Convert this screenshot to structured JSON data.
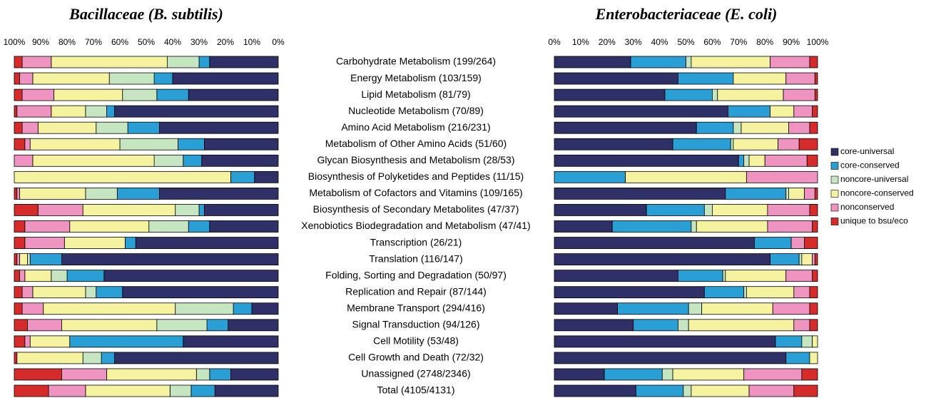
{
  "chart_data": [
    {
      "type": "bar",
      "orientation": "horizontal",
      "stacked": true,
      "title": "Bacillaceae (B. subtilis)",
      "categories": [
        "Carbohydrate Metabolism (199/264)",
        "Energy Metabolism (103/159)",
        "Lipid Metabolism (81/79)",
        "Nucleotide Metabolism (70/89)",
        "Amino Acid Metabolism (216/231)",
        "Metabolism of Other Amino Acids (51/60)",
        "Glycan Biosynthesis and Metabolism (28/53)",
        "Biosynthesis of Polyketides and  Peptides (11/15)",
        "Metabolism of Cofactors and Vitamins (109/165)",
        "Biosynthesis of Secondary Metabolites (47/37)",
        "Xenobiotics Biodegradation and Metabolism (47/41)",
        "Transcription (26/21)",
        "Translation (116/147)",
        "Folding, Sorting and Degradation (50/97)",
        "Replication and Repair (87/144)",
        "Membrane Transport (294/416)",
        "Signal Transduction (94/126)",
        "Cell Motility (53/48)",
        "Cell Growth and Death (72/32)",
        "Unassigned (2748/2346)",
        "Total (4105/4131)"
      ],
      "xlim": [
        100,
        0
      ],
      "xticks": [
        {
          "value": 100,
          "label": "100%"
        },
        {
          "value": 90,
          "label": "90%"
        },
        {
          "value": 80,
          "label": "80%"
        },
        {
          "value": 70,
          "label": "70%"
        },
        {
          "value": 60,
          "label": "60%"
        },
        {
          "value": 50,
          "label": "50%"
        },
        {
          "value": 40,
          "label": "40%"
        },
        {
          "value": 30,
          "label": "30%"
        },
        {
          "value": 20,
          "label": "20%"
        },
        {
          "value": 10,
          "label": "10%"
        },
        {
          "value": 0,
          "label": "0%"
        }
      ],
      "series": [
        {
          "color": "#2e3067",
          "values": [
            26,
            40,
            34,
            62,
            45,
            28,
            29,
            9,
            45,
            28,
            26,
            54,
            82,
            66,
            59,
            10,
            19,
            36,
            62,
            18,
            24
          ]
        },
        {
          "color": "#2a9fd6",
          "values": [
            4,
            7,
            12,
            3,
            12,
            10,
            7,
            9,
            16,
            2,
            8,
            4,
            12,
            14,
            10,
            7,
            8,
            43,
            5,
            8,
            9
          ]
        },
        {
          "color": "#c6e6c2",
          "values": [
            12,
            17,
            13,
            8,
            12,
            22,
            11,
            0,
            12,
            9,
            15,
            0,
            1,
            6,
            4,
            22,
            19,
            0,
            7,
            5,
            8
          ]
        },
        {
          "color": "#f5f2a0",
          "values": [
            44,
            29,
            26,
            13,
            22,
            34,
            46,
            82,
            25,
            35,
            30,
            23,
            3,
            10,
            20,
            50,
            36,
            15,
            25,
            34,
            32
          ]
        },
        {
          "color": "#ef93c0",
          "values": [
            11,
            5,
            12,
            13,
            6,
            2,
            7,
            0,
            1,
            17,
            17,
            15,
            1,
            2,
            4,
            8,
            13,
            2,
            0,
            17,
            14
          ]
        },
        {
          "color": "#d62b2b",
          "values": [
            3,
            2,
            3,
            1,
            3,
            4,
            0,
            0,
            1,
            9,
            4,
            4,
            1,
            2,
            3,
            3,
            5,
            4,
            1,
            18,
            13
          ]
        }
      ]
    },
    {
      "type": "bar",
      "orientation": "horizontal",
      "stacked": true,
      "title": "Enterobacteriaceae (E. coli)",
      "xlim": [
        0,
        100
      ],
      "xticks": [
        {
          "value": 0,
          "label": "0%"
        },
        {
          "value": 10,
          "label": "10%"
        },
        {
          "value": 20,
          "label": "20%"
        },
        {
          "value": 30,
          "label": "30%"
        },
        {
          "value": 40,
          "label": "40%"
        },
        {
          "value": 50,
          "label": "50%"
        },
        {
          "value": 60,
          "label": "60%"
        },
        {
          "value": 70,
          "label": "70%"
        },
        {
          "value": 80,
          "label": "80%"
        },
        {
          "value": 90,
          "label": "90%"
        },
        {
          "value": 100,
          "label": "100%"
        }
      ],
      "legend": "right",
      "series": [
        {
          "name": "core-universal",
          "color": "#2e3067",
          "values": [
            29,
            47,
            42,
            66,
            54,
            45,
            70,
            0,
            65,
            35,
            22,
            76,
            82,
            47,
            57,
            24,
            30,
            84,
            88,
            19,
            31
          ]
        },
        {
          "name": "core-conserved",
          "color": "#2a9fd6",
          "values": [
            21,
            21,
            18,
            16,
            14,
            22,
            2,
            27,
            23,
            22,
            30,
            14,
            11,
            17,
            15,
            27,
            17,
            10,
            9,
            22,
            18
          ]
        },
        {
          "name": "noncore-universal",
          "color": "#c6e6c2",
          "values": [
            2,
            0,
            2,
            0,
            3,
            1,
            2,
            0,
            1,
            3,
            2,
            0,
            1,
            1,
            1,
            5,
            4,
            4,
            0,
            4,
            3
          ]
        },
        {
          "name": "noncore-conserved",
          "color": "#f5f2a0",
          "values": [
            30,
            20,
            25,
            9,
            18,
            17,
            6,
            46,
            6,
            21,
            27,
            0,
            4,
            23,
            18,
            27,
            40,
            2,
            3,
            27,
            22
          ]
        },
        {
          "name": "nonconserved",
          "color": "#ef93c0",
          "values": [
            15,
            11,
            12,
            7,
            8,
            8,
            16,
            27,
            4,
            16,
            17,
            5,
            1,
            10,
            6,
            14,
            6,
            0,
            0,
            22,
            17
          ]
        },
        {
          "name": "unique to bsu/eco",
          "color": "#d62b2b",
          "values": [
            3,
            1,
            1,
            2,
            3,
            7,
            4,
            0,
            1,
            3,
            2,
            5,
            1,
            2,
            3,
            3,
            3,
            0,
            0,
            6,
            9
          ]
        }
      ]
    }
  ]
}
